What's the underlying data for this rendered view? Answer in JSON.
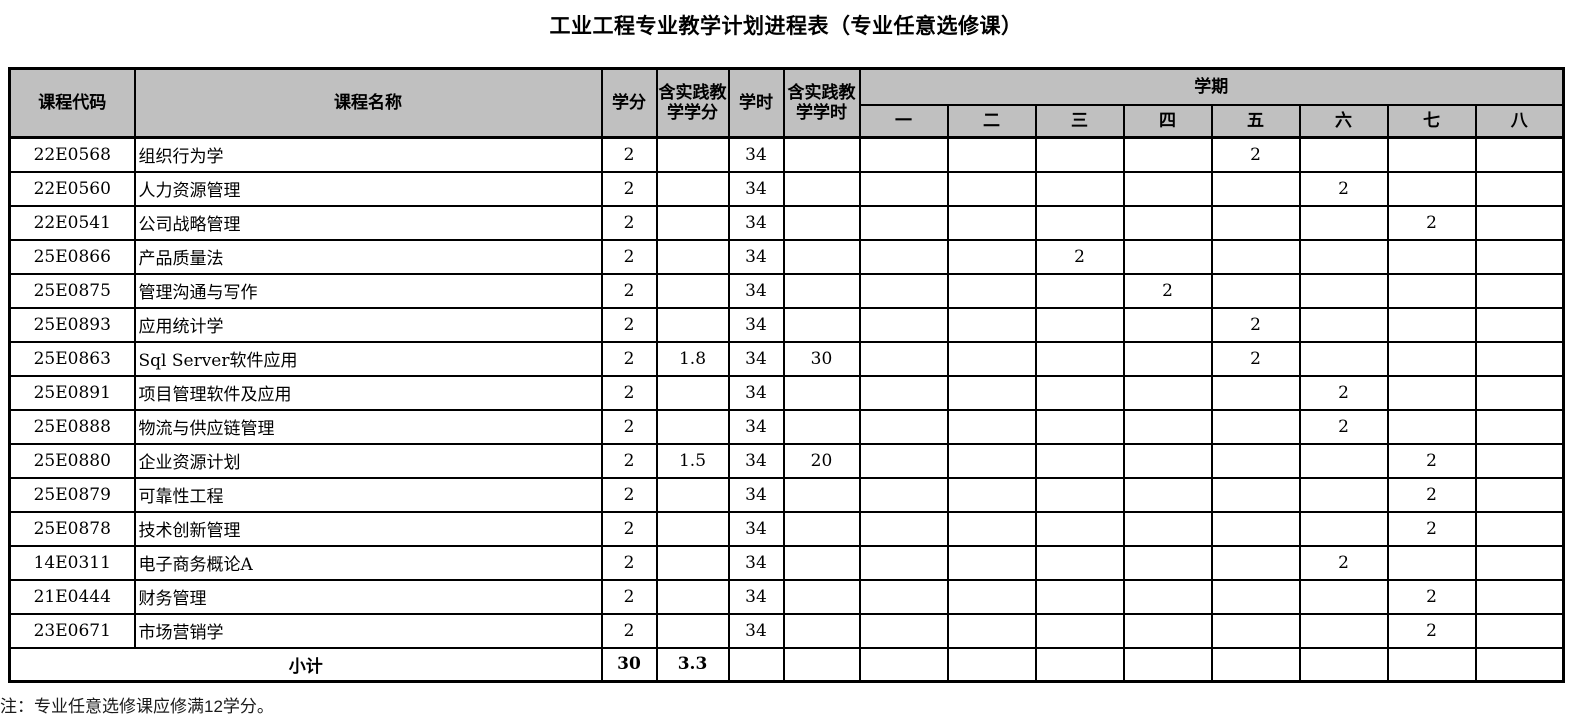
{
  "title": "工业工程专业教学计划进程表（专业任意选修课）",
  "note": "注：专业任意选修课应修满12学分。",
  "table": {
    "headers": {
      "course_code": "课程代码",
      "course_name": "课程名称",
      "credits": "学分",
      "practice_credits": "含实践教学学分",
      "hours": "学时",
      "practice_hours": "含实践教学学时",
      "semester_group": "学期",
      "semesters": [
        "一",
        "二",
        "三",
        "四",
        "五",
        "六",
        "七",
        "八"
      ]
    },
    "rows": [
      {
        "code": "22E0568",
        "name": "组织行为学",
        "credits": "2",
        "practice_credits": "",
        "hours": "34",
        "practice_hours": "",
        "semesters": [
          "",
          "",
          "",
          "",
          "2",
          "",
          "",
          ""
        ]
      },
      {
        "code": "22E0560",
        "name": "人力资源管理",
        "credits": "2",
        "practice_credits": "",
        "hours": "34",
        "practice_hours": "",
        "semesters": [
          "",
          "",
          "",
          "",
          "",
          "2",
          "",
          ""
        ]
      },
      {
        "code": "22E0541",
        "name": "公司战略管理",
        "credits": "2",
        "practice_credits": "",
        "hours": "34",
        "practice_hours": "",
        "semesters": [
          "",
          "",
          "",
          "",
          "",
          "",
          "2",
          ""
        ]
      },
      {
        "code": "25E0866",
        "name": "产品质量法",
        "credits": "2",
        "practice_credits": "",
        "hours": "34",
        "practice_hours": "",
        "semesters": [
          "",
          "",
          "2",
          "",
          "",
          "",
          "",
          ""
        ]
      },
      {
        "code": "25E0875",
        "name": "管理沟通与写作",
        "credits": "2",
        "practice_credits": "",
        "hours": "34",
        "practice_hours": "",
        "semesters": [
          "",
          "",
          "",
          "2",
          "",
          "",
          "",
          ""
        ]
      },
      {
        "code": "25E0893",
        "name": "应用统计学",
        "credits": "2",
        "practice_credits": "",
        "hours": "34",
        "practice_hours": "",
        "semesters": [
          "",
          "",
          "",
          "",
          "2",
          "",
          "",
          ""
        ]
      },
      {
        "code": "25E0863",
        "name": "Sql Server软件应用",
        "credits": "2",
        "practice_credits": "1.8",
        "hours": "34",
        "practice_hours": "30",
        "semesters": [
          "",
          "",
          "",
          "",
          "2",
          "",
          "",
          ""
        ]
      },
      {
        "code": "25E0891",
        "name": "项目管理软件及应用",
        "credits": "2",
        "practice_credits": "",
        "hours": "34",
        "practice_hours": "",
        "semesters": [
          "",
          "",
          "",
          "",
          "",
          "2",
          "",
          ""
        ]
      },
      {
        "code": "25E0888",
        "name": "物流与供应链管理",
        "credits": "2",
        "practice_credits": "",
        "hours": "34",
        "practice_hours": "",
        "semesters": [
          "",
          "",
          "",
          "",
          "",
          "2",
          "",
          ""
        ]
      },
      {
        "code": "25E0880",
        "name": "企业资源计划",
        "credits": "2",
        "practice_credits": "1.5",
        "hours": "34",
        "practice_hours": "20",
        "semesters": [
          "",
          "",
          "",
          "",
          "",
          "",
          "2",
          ""
        ]
      },
      {
        "code": "25E0879",
        "name": "可靠性工程",
        "credits": "2",
        "practice_credits": "",
        "hours": "34",
        "practice_hours": "",
        "semesters": [
          "",
          "",
          "",
          "",
          "",
          "",
          "2",
          ""
        ]
      },
      {
        "code": "25E0878",
        "name": "技术创新管理",
        "credits": "2",
        "practice_credits": "",
        "hours": "34",
        "practice_hours": "",
        "semesters": [
          "",
          "",
          "",
          "",
          "",
          "",
          "2",
          ""
        ]
      },
      {
        "code": "14E0311",
        "name": "电子商务概论A",
        "credits": "2",
        "practice_credits": "",
        "hours": "34",
        "practice_hours": "",
        "semesters": [
          "",
          "",
          "",
          "",
          "",
          "2",
          "",
          ""
        ]
      },
      {
        "code": "21E0444",
        "name": "财务管理",
        "credits": "2",
        "practice_credits": "",
        "hours": "34",
        "practice_hours": "",
        "semesters": [
          "",
          "",
          "",
          "",
          "",
          "",
          "2",
          ""
        ]
      },
      {
        "code": "23E0671",
        "name": "市场营销学",
        "credits": "2",
        "practice_credits": "",
        "hours": "34",
        "practice_hours": "",
        "semesters": [
          "",
          "",
          "",
          "",
          "",
          "",
          "2",
          ""
        ]
      }
    ],
    "subtotal": {
      "label": "小计",
      "credits": "30",
      "practice_credits": "3.3",
      "hours": "",
      "practice_hours": "",
      "semesters": [
        "",
        "",
        "",
        "",
        "",
        "",
        "",
        ""
      ]
    }
  }
}
